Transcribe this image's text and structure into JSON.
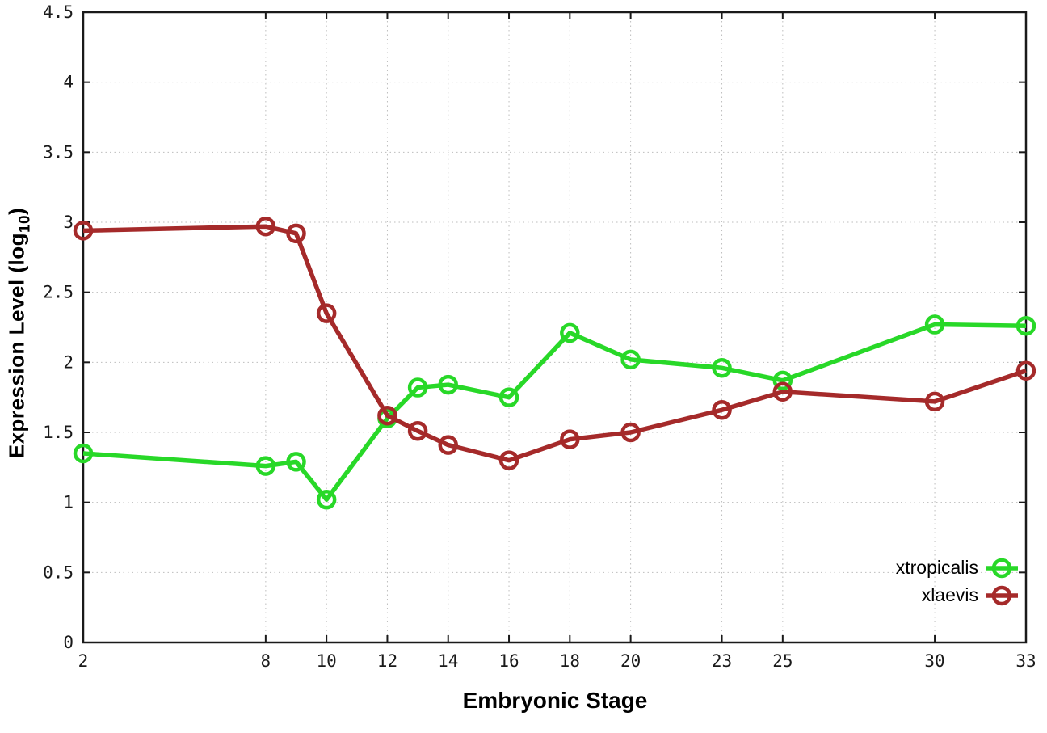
{
  "chart_data": {
    "type": "line",
    "x": [
      2,
      8,
      9,
      10,
      12,
      13,
      14,
      16,
      18,
      20,
      23,
      25,
      30,
      33
    ],
    "series": [
      {
        "name": "xtropicalis",
        "color": "#28d828",
        "values": [
          1.35,
          1.26,
          1.29,
          1.02,
          1.6,
          1.82,
          1.84,
          1.75,
          2.21,
          2.02,
          1.96,
          1.87,
          2.27,
          2.26
        ]
      },
      {
        "name": "xlaevis",
        "color": "#a52a2a",
        "values": [
          2.94,
          2.97,
          2.92,
          2.35,
          1.62,
          1.51,
          1.41,
          1.3,
          1.45,
          1.5,
          1.66,
          1.79,
          1.72,
          1.94
        ]
      }
    ],
    "title": "",
    "xlabel": "Embryonic Stage",
    "ylabel_prefix": "Expression Level (log",
    "ylabel_sub": "10",
    "ylabel_suffix": ")",
    "xlim": [
      2,
      33
    ],
    "ylim": [
      0,
      4.5
    ],
    "xticks": [
      2,
      8,
      10,
      12,
      14,
      16,
      18,
      20,
      23,
      25,
      30,
      33
    ],
    "yticks": [
      0,
      0.5,
      1,
      1.5,
      2,
      2.5,
      3,
      3.5,
      4,
      4.5
    ],
    "grid": true,
    "grid_style": "dotted",
    "legend_position": "bottom-right",
    "marker": "open-circle",
    "background": "#ffffff",
    "border_color": "#1a1a1a",
    "grid_color": "#bdbdbd"
  }
}
